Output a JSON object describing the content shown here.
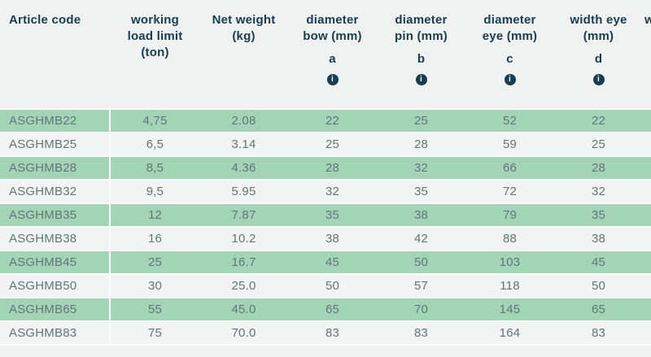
{
  "colors": {
    "row_green": "#a4d4b6",
    "row_light": "#f1f4f2",
    "background": "#eff2f0",
    "row_divider": "#ffffff",
    "header_text": "#183c50",
    "body_text": "#60767a",
    "info_icon_bg": "#183c50",
    "info_icon_glyph": "#ffffff"
  },
  "table": {
    "columns": [
      {
        "key": "article_code",
        "label_lines": [
          "Article code"
        ],
        "letter": "",
        "has_info": false
      },
      {
        "key": "working_load_limit",
        "label_lines": [
          "working",
          "load limit",
          "(ton)"
        ],
        "letter": "",
        "has_info": false
      },
      {
        "key": "net_weight",
        "label_lines": [
          "Net weight",
          "(kg)"
        ],
        "letter": "",
        "has_info": false
      },
      {
        "key": "diameter_bow",
        "label_lines": [
          "diameter",
          "bow (mm)"
        ],
        "letter": "a",
        "has_info": true
      },
      {
        "key": "diameter_pin",
        "label_lines": [
          "diameter",
          "pin (mm)"
        ],
        "letter": "b",
        "has_info": true
      },
      {
        "key": "diameter_eye",
        "label_lines": [
          "diameter",
          "eye (mm)"
        ],
        "letter": "c",
        "has_info": true
      },
      {
        "key": "width_eye",
        "label_lines": [
          "width eye",
          "(mm)"
        ],
        "letter": "d",
        "has_info": true
      },
      {
        "key": "next_column_cutoff",
        "label_lines": [
          "w"
        ],
        "letter": "",
        "has_info": false
      }
    ],
    "info_icon_glyph": "i",
    "rows": [
      {
        "article_code": "ASGHMB22",
        "values": [
          "4,75",
          "2.08",
          "22",
          "25",
          "52",
          "22"
        ]
      },
      {
        "article_code": "ASGHMB25",
        "values": [
          "6,5",
          "3.14",
          "25",
          "28",
          "59",
          "25"
        ]
      },
      {
        "article_code": "ASGHMB28",
        "values": [
          "8,5",
          "4.36",
          "28",
          "32",
          "66",
          "28"
        ]
      },
      {
        "article_code": "ASGHMB32",
        "values": [
          "9,5",
          "5.95",
          "32",
          "35",
          "72",
          "32"
        ]
      },
      {
        "article_code": "ASGHMB35",
        "values": [
          "12",
          "7.87",
          "35",
          "38",
          "79",
          "35"
        ]
      },
      {
        "article_code": "ASGHMB38",
        "values": [
          "16",
          "10.2",
          "38",
          "42",
          "88",
          "38"
        ]
      },
      {
        "article_code": "ASGHMB45",
        "values": [
          "25",
          "16.7",
          "45",
          "50",
          "103",
          "45"
        ]
      },
      {
        "article_code": "ASGHMB50",
        "values": [
          "30",
          "25.0",
          "50",
          "57",
          "118",
          "50"
        ]
      },
      {
        "article_code": "ASGHMB65",
        "values": [
          "55",
          "45.0",
          "65",
          "70",
          "145",
          "65"
        ]
      },
      {
        "article_code": "ASGHMB83",
        "values": [
          "75",
          "70.0",
          "83",
          "83",
          "164",
          "83"
        ]
      }
    ]
  }
}
